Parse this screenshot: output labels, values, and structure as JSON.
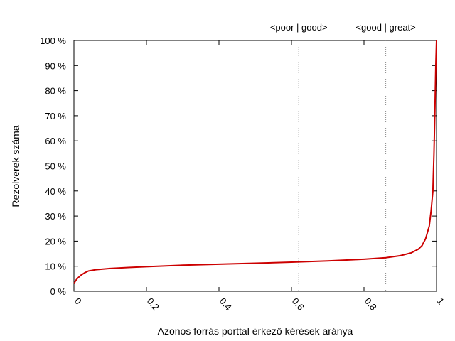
{
  "chart_data": {
    "type": "line",
    "title": "",
    "xlabel": "Azonos forrás porttal érkező kérések aránya",
    "ylabel": "Rezolverek száma",
    "xlim": [
      0,
      1
    ],
    "ylim": [
      0,
      100
    ],
    "x_ticks": [
      "0",
      "0.2",
      "0.4",
      "0.6",
      "0.8",
      "1"
    ],
    "x_tick_values": [
      0,
      0.2,
      0.4,
      0.6,
      0.8,
      1
    ],
    "y_ticks": [
      "0 %",
      "10 %",
      "20 %",
      "30 %",
      "40 %",
      "50 %",
      "60 %",
      "70 %",
      "80 %",
      "90 %",
      "100 %"
    ],
    "y_tick_values": [
      0,
      10,
      20,
      30,
      40,
      50,
      60,
      70,
      80,
      90,
      100
    ],
    "grid": false,
    "line_color": "#cc0000",
    "markers": [
      {
        "x": 0.62,
        "label": "<poor | good>"
      },
      {
        "x": 0.86,
        "label": "<good | great>"
      }
    ],
    "series": [
      {
        "values": [
          [
            0.0,
            3.0
          ],
          [
            0.005,
            4.3
          ],
          [
            0.01,
            5.2
          ],
          [
            0.02,
            6.5
          ],
          [
            0.03,
            7.4
          ],
          [
            0.04,
            8.1
          ],
          [
            0.06,
            8.6
          ],
          [
            0.1,
            9.1
          ],
          [
            0.15,
            9.5
          ],
          [
            0.2,
            9.8
          ],
          [
            0.3,
            10.4
          ],
          [
            0.4,
            10.8
          ],
          [
            0.5,
            11.2
          ],
          [
            0.6,
            11.6
          ],
          [
            0.7,
            12.1
          ],
          [
            0.8,
            12.8
          ],
          [
            0.86,
            13.4
          ],
          [
            0.9,
            14.2
          ],
          [
            0.93,
            15.3
          ],
          [
            0.95,
            16.8
          ],
          [
            0.96,
            18.2
          ],
          [
            0.97,
            21.0
          ],
          [
            0.98,
            26.0
          ],
          [
            0.985,
            32.0
          ],
          [
            0.99,
            40.0
          ],
          [
            0.993,
            55.0
          ],
          [
            0.996,
            75.0
          ],
          [
            0.998,
            90.0
          ],
          [
            1.0,
            100.0
          ]
        ]
      }
    ]
  }
}
